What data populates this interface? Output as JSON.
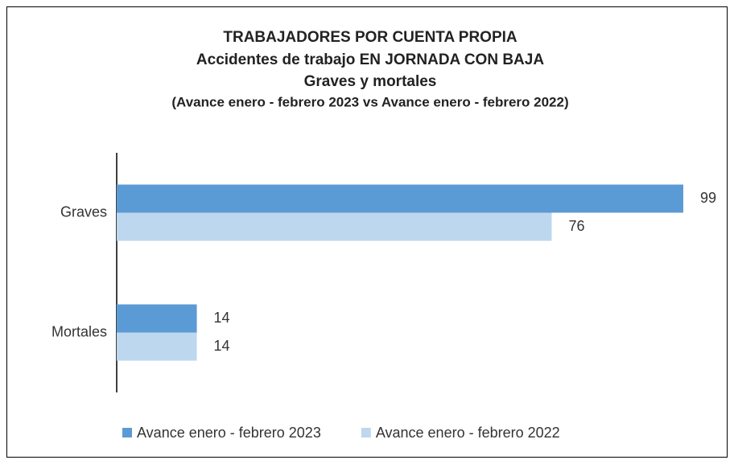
{
  "chart_data": {
    "type": "bar",
    "orientation": "horizontal",
    "title": "TRABAJADORES POR CUENTA PROPIA",
    "subtitle": [
      "Accidentes de trabajo EN JORNADA CON BAJA",
      "Graves y mortales",
      "(Avance enero - febrero 2023 vs Avance enero - febrero 2022)"
    ],
    "categories": [
      "Graves",
      "Mortales"
    ],
    "series": [
      {
        "name": "Avance enero - febrero 2023",
        "color": "#5b9bd5",
        "values": [
          99,
          14
        ]
      },
      {
        "name": "Avance enero - febrero 2022",
        "color": "#bdd7ee",
        "values": [
          76,
          14
        ]
      }
    ],
    "legend": "bottom"
  }
}
